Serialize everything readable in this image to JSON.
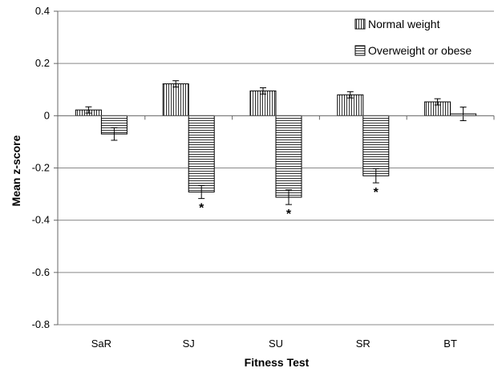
{
  "chart_data": {
    "type": "bar",
    "title": "",
    "xlabel": "Fitness Test",
    "ylabel": "Mean z-score",
    "ylim": [
      -0.8,
      0.4
    ],
    "yticks": [
      "0.4",
      "0.2",
      "0",
      "-0.2",
      "-0.4",
      "-0.6",
      "-0.8"
    ],
    "categories": [
      "SaR",
      "SJ",
      "SU",
      "SR",
      "BT"
    ],
    "grid": true,
    "legend_position": "top-right",
    "series": [
      {
        "name": "Normal weight",
        "pattern": "vertical-stripes",
        "values": [
          0.022,
          0.122,
          0.095,
          0.08,
          0.053
        ],
        "errors": [
          0.012,
          0.012,
          0.012,
          0.012,
          0.012
        ],
        "significant": [
          false,
          false,
          false,
          false,
          false
        ]
      },
      {
        "name": "Overweight or obese",
        "pattern": "horizontal-stripes",
        "values": [
          -0.07,
          -0.292,
          -0.312,
          -0.23,
          0.007
        ],
        "errors": [
          0.024,
          0.025,
          0.028,
          0.027,
          0.026
        ],
        "significant": [
          false,
          true,
          true,
          true,
          false
        ]
      }
    ],
    "significance_marker": "*"
  }
}
